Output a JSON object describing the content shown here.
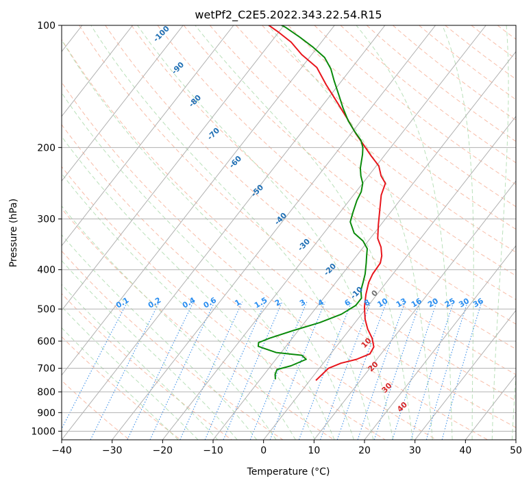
{
  "chart_data": {
    "type": "line",
    "diagram": "skew-T log-P",
    "title": "wetPf2_C2E5.2022.343.22.54.R15",
    "xlabel": "Temperature (°C)",
    "ylabel": "Pressure (hPa)",
    "xlim": [
      -40,
      50
    ],
    "ylim": [
      1050,
      100
    ],
    "y_scale": "log",
    "x_ticks": [
      -40,
      -30,
      -20,
      -10,
      0,
      10,
      20,
      30,
      40,
      50
    ],
    "y_ticks": [
      100,
      200,
      300,
      400,
      500,
      600,
      700,
      800,
      900,
      1000
    ],
    "grid": true,
    "colors": {
      "temperature": "#e8141b",
      "dewpoint": "#0a8a0a",
      "isotherm": "#b0b0b0",
      "dry_adiabat": "#f5a58a",
      "moist_adiabat": "#a8d8a8",
      "mixing_ratio": "#3a8ee8",
      "dry_adiabat_label": "#d62728",
      "moist_adiabat_label": "#1f6fb4",
      "mixing_ratio_label": "#2a8ef0"
    },
    "series": [
      {
        "role": "temperature",
        "points": [
          [
            1.2,
            750
          ],
          [
            1.8,
            700
          ],
          [
            3.5,
            680
          ],
          [
            6.0,
            665
          ],
          [
            7.8,
            645
          ],
          [
            7.5,
            620
          ],
          [
            5.8,
            590
          ],
          [
            3.5,
            560
          ],
          [
            1.5,
            530
          ],
          [
            -0.5,
            495
          ],
          [
            -2.2,
            460
          ],
          [
            -3.5,
            430
          ],
          [
            -4.0,
            410
          ],
          [
            -4.2,
            385
          ],
          [
            -5.0,
            370
          ],
          [
            -6.5,
            352
          ],
          [
            -8.5,
            335
          ],
          [
            -10.5,
            310
          ],
          [
            -12.5,
            285
          ],
          [
            -14.5,
            262
          ],
          [
            -15.5,
            245
          ],
          [
            -17.5,
            235
          ],
          [
            -19.5,
            222
          ],
          [
            -22.5,
            210
          ],
          [
            -25.5,
            198
          ],
          [
            -29.0,
            185
          ],
          [
            -33.0,
            170
          ],
          [
            -37.5,
            155
          ],
          [
            -42.5,
            140
          ],
          [
            -47.0,
            127
          ],
          [
            -52.0,
            118
          ],
          [
            -56.0,
            110
          ],
          [
            -60.0,
            104
          ],
          [
            -63.0,
            100
          ]
        ]
      },
      {
        "role": "dewpoint",
        "points": [
          [
            -7.0,
            745
          ],
          [
            -7.8,
            725
          ],
          [
            -8.2,
            705
          ],
          [
            -6.0,
            690
          ],
          [
            -4.0,
            665
          ],
          [
            -5.5,
            650
          ],
          [
            -11.0,
            640
          ],
          [
            -15.5,
            618
          ],
          [
            -16.0,
            605
          ],
          [
            -14.5,
            590
          ],
          [
            -11.0,
            565
          ],
          [
            -7.0,
            540
          ],
          [
            -4.0,
            515
          ],
          [
            -2.5,
            490
          ],
          [
            -2.5,
            470
          ],
          [
            -3.8,
            450
          ],
          [
            -4.6,
            430
          ],
          [
            -5.5,
            410
          ],
          [
            -7.0,
            385
          ],
          [
            -8.0,
            370
          ],
          [
            -9.0,
            355
          ],
          [
            -11.0,
            340
          ],
          [
            -14.0,
            325
          ],
          [
            -16.5,
            305
          ],
          [
            -17.5,
            288
          ],
          [
            -18.5,
            270
          ],
          [
            -19.0,
            257
          ],
          [
            -20.0,
            245
          ],
          [
            -21.5,
            235
          ],
          [
            -22.8,
            225
          ],
          [
            -24.5,
            208
          ],
          [
            -25.5,
            200
          ],
          [
            -27.0,
            192
          ],
          [
            -29.5,
            183
          ],
          [
            -32.5,
            172
          ],
          [
            -35.5,
            160
          ],
          [
            -38.5,
            148
          ],
          [
            -41.5,
            137
          ],
          [
            -44.0,
            128
          ],
          [
            -47.0,
            120
          ],
          [
            -51.0,
            113
          ],
          [
            -55.0,
            107
          ],
          [
            -59.5,
            101
          ],
          [
            -60.5,
            100
          ]
        ]
      }
    ],
    "dry_adiabat_labels": [
      "0",
      "10",
      "20",
      "30",
      "40"
    ],
    "moist_adiabat_labels": [
      "-100",
      "-90",
      "-80",
      "-70",
      "-60",
      "-50",
      "-40",
      "-30",
      "-20",
      "-10"
    ],
    "mixing_ratio_labels": [
      "0.1",
      "0.2",
      "0.4",
      "0.6",
      "1",
      "1.5",
      "2",
      "3",
      "4",
      "6",
      "8",
      "10",
      "13",
      "16",
      "20",
      "25",
      "30",
      "36"
    ]
  }
}
